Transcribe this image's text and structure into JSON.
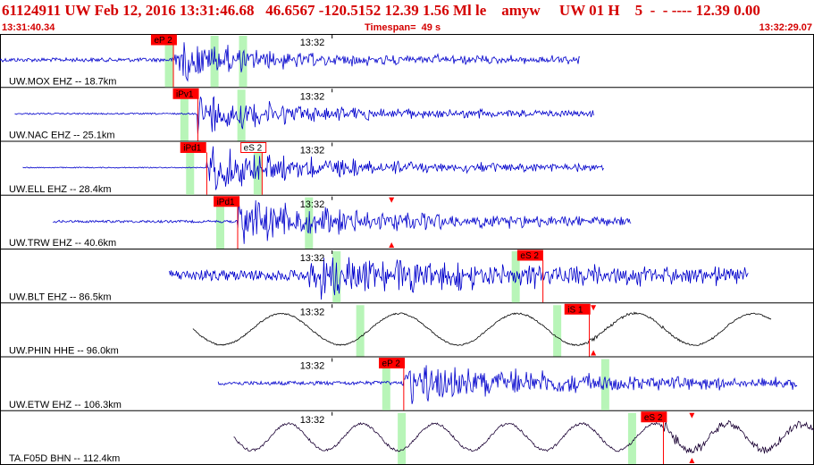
{
  "header": {
    "title": "61124911 UW Feb 12, 2016 13:31:46.68   46.6567 -120.5152 12.39 1.56 Ml le    amyw     UW 01 H    5  -  - ---- 12.39 0.00",
    "start_time": "13:31:40.34",
    "timespan": "Timespan=  49 s",
    "end_time": "13:32:29.07"
  },
  "time_tick": "13:32",
  "colors": {
    "header_text": "#d40000",
    "trace_vertical": "#0000cc",
    "trace_horizontal": "#000000",
    "trace_broadband": "#1a0033",
    "pick_box": "#ff0000",
    "pick_window": "#b8f5b8",
    "marker": "#ff0000"
  },
  "traces": [
    {
      "label": "UW.MOX EHZ -- 18.7km",
      "color": "#0000cc",
      "start": 0.0,
      "end": 0.713,
      "noise": 0.08,
      "amp": 0.75,
      "onset": 0.215,
      "decay": 2.2,
      "freq": 2.5,
      "windows": [
        0.207,
        0.263,
        0.298
      ],
      "picks": [
        {
          "text": "eP 2",
          "x": 0.186,
          "line": 0.213,
          "style": "filled"
        }
      ],
      "markers": []
    },
    {
      "label": "UW.NAC EHZ -- 25.1km",
      "color": "#0000cc",
      "start": 0.018,
      "end": 0.73,
      "noise": 0.03,
      "amp": 0.7,
      "onset": 0.243,
      "decay": 1.8,
      "freq": 2.5,
      "windows": [
        0.226,
        0.296
      ],
      "picks": [
        {
          "text": "iPv1",
          "x": 0.213,
          "line": 0.243,
          "style": "filled"
        }
      ],
      "markers": []
    },
    {
      "label": "UW.ELL EHZ -- 28.4km",
      "color": "#0000cc",
      "start": 0.028,
      "end": 0.742,
      "noise": 0.02,
      "amp": 0.8,
      "onset": 0.254,
      "decay": 1.7,
      "freq": 2.5,
      "windows": [
        0.233,
        0.316
      ],
      "picks": [
        {
          "text": "iPd1",
          "x": 0.222,
          "line": 0.254,
          "style": "filled"
        },
        {
          "text": "eS 2",
          "x": 0.296,
          "line": 0.322,
          "style": "outline"
        }
      ],
      "markers": []
    },
    {
      "label": "UW.TRW EHZ -- 40.6km",
      "color": "#0000cc",
      "start": 0.065,
      "end": 0.776,
      "noise": 0.05,
      "amp": 0.85,
      "onset": 0.292,
      "decay": 1.4,
      "freq": 2.5,
      "windows": [
        0.27,
        0.379
      ],
      "picks": [
        {
          "text": "iPd1",
          "x": 0.263,
          "line": 0.292,
          "style": "filled"
        }
      ],
      "markers": [
        0.481
      ]
    },
    {
      "label": "UW.BLT EHZ -- 86.5km",
      "color": "#0000cc",
      "start": 0.208,
      "end": 0.92,
      "noise": 0.22,
      "amp": 0.8,
      "onset": 0.38,
      "decay": 0.9,
      "freq": 2.7,
      "windows": [
        0.413,
        0.633
      ],
      "picks": [
        {
          "text": "eS 2",
          "x": 0.636,
          "line": 0.667,
          "style": "filled"
        }
      ],
      "markers": []
    },
    {
      "label": "UW.PHIN HHE -- 96.0km",
      "color": "#000000",
      "start": 0.237,
      "end": 0.948,
      "noise": 0.03,
      "amp": 0.05,
      "onset": 0.72,
      "decay": 1.0,
      "freq": 3.0,
      "swell": 0.65,
      "swellperiod": 0.145,
      "windows": [
        0.442,
        0.684
      ],
      "picks": [
        {
          "text": "iS 1",
          "x": 0.694,
          "line": 0.724,
          "style": "filled"
        }
      ],
      "markers": [
        0.729
      ]
    },
    {
      "label": "UW.ETW EHZ -- 106.3km",
      "color": "#0000cc",
      "start": 0.268,
      "end": 0.98,
      "noise": 0.08,
      "amp": 0.7,
      "onset": 0.495,
      "decay": 1.0,
      "freq": 2.6,
      "windows": [
        0.474,
        0.743
      ],
      "picks": [
        {
          "text": "eP 2",
          "x": 0.466,
          "line": 0.496,
          "style": "filled"
        }
      ],
      "markers": []
    },
    {
      "label": "TA.F05D BHN -- 112.4km",
      "color": "#1a0033",
      "start": 0.287,
      "end": 1.0,
      "noise": 0.05,
      "amp": 0.2,
      "onset": 0.815,
      "decay": 1.0,
      "freq": 2.0,
      "swell": 0.55,
      "swellperiod": 0.09,
      "windows": [
        0.493,
        0.776
      ],
      "picks": [
        {
          "text": "eS 2",
          "x": 0.788,
          "line": 0.815,
          "style": "filled"
        }
      ],
      "markers": [
        0.85
      ]
    }
  ]
}
